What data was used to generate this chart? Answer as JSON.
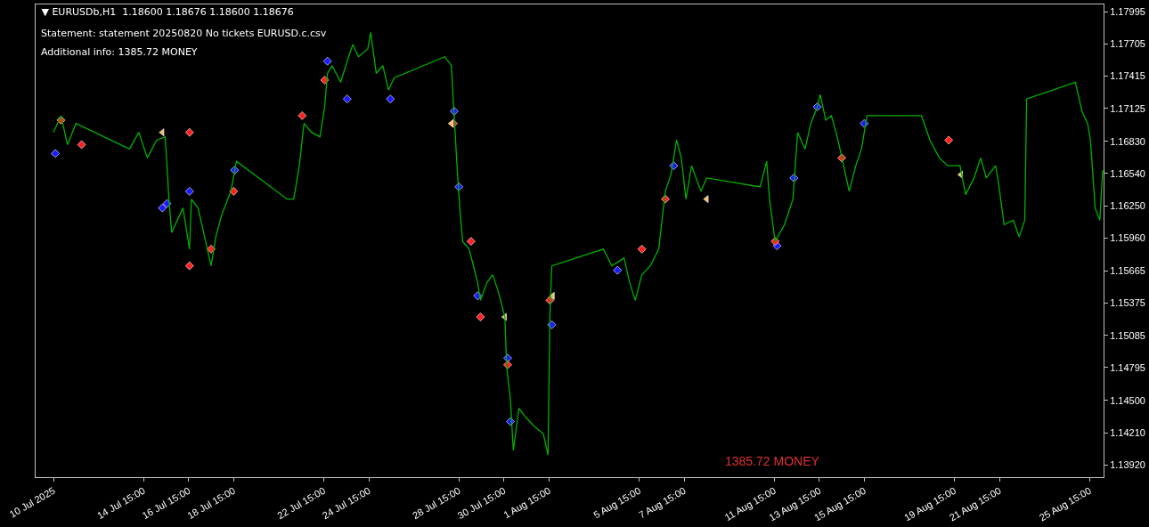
{
  "chart_data": {
    "type": "line",
    "title": "▼ EURUSDb,H1  1.18600 1.18676 1.18600 1.18676",
    "annotations": [
      "Statement: statement 20250820 No tickets EURUSD.c.csv",
      "Additional info: 1385.72 MONEY",
      "1385.72 MONEY"
    ],
    "xlim": [
      "2025-07-09T20:00",
      "2025-08-26T06:00"
    ],
    "xticks": [
      {
        "value": "2025-07-10T15:00",
        "label": "10 Jul 2025"
      },
      {
        "value": "2025-07-14T15:00",
        "label": "14 Jul 15:00"
      },
      {
        "value": "2025-07-16T15:00",
        "label": "16 Jul 15:00"
      },
      {
        "value": "2025-07-18T15:00",
        "label": "18 Jul 15:00"
      },
      {
        "value": "2025-07-22T15:00",
        "label": "22 Jul 15:00"
      },
      {
        "value": "2025-07-24T15:00",
        "label": "24 Jul 15:00"
      },
      {
        "value": "2025-07-28T15:00",
        "label": "28 Jul 15:00"
      },
      {
        "value": "2025-07-30T15:00",
        "label": "30 Jul 15:00"
      },
      {
        "value": "2025-08-01T15:00",
        "label": "1 Aug 15:00"
      },
      {
        "value": "2025-08-05T15:00",
        "label": "5 Aug 15:00"
      },
      {
        "value": "2025-08-07T15:00",
        "label": "7 Aug 15:00"
      },
      {
        "value": "2025-08-11T15:00",
        "label": "11 Aug 15:00"
      },
      {
        "value": "2025-08-13T15:00",
        "label": "13 Aug 15:00"
      },
      {
        "value": "2025-08-15T15:00",
        "label": "15 Aug 15:00"
      },
      {
        "value": "2025-08-19T15:00",
        "label": "19 Aug 15:00"
      },
      {
        "value": "2025-08-21T15:00",
        "label": "21 Aug 15:00"
      },
      {
        "value": "2025-08-25T15:00",
        "label": "25 Aug 15:00"
      }
    ],
    "ylim": [
      1.1381,
      1.1806
    ],
    "yticks": [
      {
        "value": 1.1392,
        "label": "1.13920"
      },
      {
        "value": 1.1421,
        "label": "1.14210"
      },
      {
        "value": 1.145,
        "label": "1.14500"
      },
      {
        "value": 1.14795,
        "label": "1.14795"
      },
      {
        "value": 1.15085,
        "label": "1.15085"
      },
      {
        "value": 1.15375,
        "label": "1.15375"
      },
      {
        "value": 1.15665,
        "label": "1.15665"
      },
      {
        "value": 1.1596,
        "label": "1.15960"
      },
      {
        "value": 1.1625,
        "label": "1.16250"
      },
      {
        "value": 1.1654,
        "label": "1.16540"
      },
      {
        "value": 1.1683,
        "label": "1.16830"
      },
      {
        "value": 1.17125,
        "label": "1.17125"
      },
      {
        "value": 1.17415,
        "label": "1.17415"
      },
      {
        "value": 1.17705,
        "label": "1.17705"
      },
      {
        "value": 1.17995,
        "label": "1.17995"
      }
    ],
    "series": [
      {
        "color": "#00b000",
        "marker": "none",
        "line_style": "solid",
        "x": [
          "2025-07-10T15:00",
          "2025-07-10T23:00",
          "2025-07-11T06:00",
          "2025-07-11T15:00",
          "2025-07-14T00:00",
          "2025-07-14T10:00",
          "2025-07-14T19:00",
          "2025-07-15T05:00",
          "2025-07-15T14:00",
          "2025-07-15T16:00",
          "2025-07-15T18:00",
          "2025-07-15T21:00",
          "2025-07-16T03:00",
          "2025-07-16T09:00",
          "2025-07-16T16:00",
          "2025-07-16T18:00",
          "2025-07-17T01:00",
          "2025-07-17T07:00",
          "2025-07-17T15:00",
          "2025-07-17T20:00",
          "2025-07-18T02:00",
          "2025-07-18T12:00",
          "2025-07-18T18:00",
          "2025-07-21T00:00",
          "2025-07-21T07:00",
          "2025-07-21T13:00",
          "2025-07-21T18:00",
          "2025-07-22T02:00",
          "2025-07-22T11:00",
          "2025-07-22T16:00",
          "2025-07-22T19:00",
          "2025-07-23T00:00",
          "2025-07-23T09:00",
          "2025-07-23T16:00",
          "2025-07-23T22:00",
          "2025-07-24T04:00",
          "2025-07-24T14:00",
          "2025-07-24T17:00",
          "2025-07-24T23:00",
          "2025-07-25T06:00",
          "2025-07-25T12:00",
          "2025-07-25T18:00",
          "2025-07-28T00:00",
          "2025-07-28T07:00",
          "2025-07-28T10:00",
          "2025-07-28T13:00",
          "2025-07-28T16:00",
          "2025-07-28T19:00",
          "2025-07-29T02:00",
          "2025-07-29T11:00",
          "2025-07-29T14:00",
          "2025-07-29T21:00",
          "2025-07-30T03:00",
          "2025-07-30T09:00",
          "2025-07-30T16:00",
          "2025-07-30T18:00",
          "2025-07-30T22:00",
          "2025-07-31T01:00",
          "2025-07-31T07:00",
          "2025-07-31T14:00",
          "2025-07-31T23:00",
          "2025-08-01T09:00",
          "2025-08-01T14:00",
          "2025-08-01T16:00",
          "2025-08-01T18:00",
          "2025-08-04T01:00",
          "2025-08-04T10:00",
          "2025-08-04T23:00",
          "2025-08-05T05:00",
          "2025-08-05T11:00",
          "2025-08-05T18:00",
          "2025-08-06T03:00",
          "2025-08-06T12:00",
          "2025-08-06T19:00",
          "2025-08-07T01:00",
          "2025-08-07T07:00",
          "2025-08-07T12:00",
          "2025-08-07T17:00",
          "2025-08-07T23:00",
          "2025-08-08T09:00",
          "2025-08-08T15:00",
          "2025-08-11T00:00",
          "2025-08-11T07:00",
          "2025-08-11T10:00",
          "2025-08-11T13:00",
          "2025-08-11T16:00",
          "2025-08-12T02:00",
          "2025-08-12T11:00",
          "2025-08-12T16:00",
          "2025-08-13T00:00",
          "2025-08-13T06:00",
          "2025-08-13T13:00",
          "2025-08-13T16:00",
          "2025-08-13T22:00",
          "2025-08-14T04:00",
          "2025-08-14T11:00",
          "2025-08-14T17:00",
          "2025-08-14T23:00",
          "2025-08-15T06:00",
          "2025-08-15T12:00",
          "2025-08-15T18:00",
          "2025-08-18T04:00",
          "2025-08-18T13:00",
          "2025-08-18T23:00",
          "2025-08-19T08:00",
          "2025-08-19T21:00",
          "2025-08-20T03:00",
          "2025-08-20T12:00",
          "2025-08-20T19:00",
          "2025-08-21T01:00",
          "2025-08-21T11:00",
          "2025-08-21T14:00",
          "2025-08-21T20:00",
          "2025-08-22T06:00",
          "2025-08-22T12:00",
          "2025-08-22T18:00",
          "2025-08-22T20:00",
          "2025-08-25T00:00",
          "2025-08-25T07:00",
          "2025-08-25T13:00",
          "2025-08-25T16:00",
          "2025-08-25T21:00",
          "2025-08-26T02:00",
          "2025-08-26T05:00"
        ],
        "values": [
          1.1691,
          1.1706,
          1.168,
          1.1699,
          1.1676,
          1.1691,
          1.1668,
          1.1684,
          1.1687,
          1.1661,
          1.1631,
          1.1601,
          1.1612,
          1.1623,
          1.1586,
          1.1631,
          1.1623,
          1.1601,
          1.1571,
          1.1597,
          1.1616,
          1.1638,
          1.1665,
          1.1631,
          1.1631,
          1.1661,
          1.1699,
          1.1691,
          1.1687,
          1.1714,
          1.1744,
          1.1751,
          1.1736,
          1.1755,
          1.177,
          1.1759,
          1.1766,
          1.1781,
          1.1744,
          1.1751,
          1.1729,
          1.174,
          1.1759,
          1.1751,
          1.1706,
          1.1661,
          1.1623,
          1.1593,
          1.1586,
          1.1556,
          1.154,
          1.1556,
          1.1563,
          1.1548,
          1.1525,
          1.148,
          1.145,
          1.1405,
          1.1443,
          1.1435,
          1.1427,
          1.142,
          1.1401,
          1.1525,
          1.1571,
          1.1586,
          1.1571,
          1.1578,
          1.1556,
          1.154,
          1.1563,
          1.1571,
          1.1586,
          1.1638,
          1.1653,
          1.1684,
          1.1668,
          1.1631,
          1.1661,
          1.1638,
          1.165,
          1.1642,
          1.1665,
          1.1631,
          1.1612,
          1.1593,
          1.1608,
          1.1631,
          1.1691,
          1.1676,
          1.1699,
          1.1714,
          1.1725,
          1.1702,
          1.1706,
          1.1684,
          1.1661,
          1.1638,
          1.1661,
          1.1676,
          1.1706,
          1.1706,
          1.1684,
          1.1668,
          1.1661,
          1.1661,
          1.1635,
          1.165,
          1.1668,
          1.165,
          1.1661,
          1.1646,
          1.1608,
          1.1612,
          1.1597,
          1.1612,
          1.1721,
          1.1736,
          1.171,
          1.1699,
          1.1684,
          1.1623,
          1.1612,
          1.1657
        ]
      },
      {
        "type": "scatter",
        "color": "#1a1aff",
        "marker": "diamond",
        "x": [
          "2025-07-10T17:00",
          "2025-07-15T11:00",
          "2025-07-15T16:00",
          "2025-07-16T16:00",
          "2025-07-18T16:00",
          "2025-07-22T19:00",
          "2025-07-23T16:00",
          "2025-07-25T14:00",
          "2025-07-28T10:00",
          "2025-07-28T15:00",
          "2025-07-29T11:00",
          "2025-07-30T19:00",
          "2025-07-30T22:00",
          "2025-08-01T18:00",
          "2025-08-04T16:00",
          "2025-08-07T04:00",
          "2025-08-11T18:00",
          "2025-08-12T12:00",
          "2025-08-13T13:00",
          "2025-08-15T15:00"
        ],
        "values": [
          1.1672,
          1.1623,
          1.1627,
          1.1638,
          1.1657,
          1.1755,
          1.1721,
          1.1721,
          1.171,
          1.1642,
          1.1544,
          1.1488,
          1.1431,
          1.1518,
          1.1567,
          1.1661,
          1.1589,
          1.165,
          1.1714,
          1.1699
        ]
      },
      {
        "type": "scatter",
        "color": "#ff2020",
        "marker": "diamond",
        "x": [
          "2025-07-10T23:00",
          "2025-07-11T21:00",
          "2025-07-16T16:00",
          "2025-07-16T16:00",
          "2025-07-17T15:00",
          "2025-07-18T15:00",
          "2025-07-21T16:00",
          "2025-07-22T16:00",
          "2025-07-28T09:00",
          "2025-07-29T04:00",
          "2025-07-29T14:00",
          "2025-07-30T19:00",
          "2025-08-01T16:00",
          "2025-08-05T18:00",
          "2025-08-06T19:00",
          "2025-08-11T16:00",
          "2025-08-14T15:00",
          "2025-08-19T09:00"
        ],
        "values": [
          1.1702,
          1.168,
          1.1691,
          1.1571,
          1.1586,
          1.1638,
          1.1706,
          1.1738,
          1.1699,
          1.1593,
          1.1525,
          1.1482,
          1.154,
          1.1586,
          1.1631,
          1.1593,
          1.1668,
          1.1684
        ]
      },
      {
        "type": "scatter",
        "color": "#f0c060",
        "marker": "triangle",
        "x": [
          "2025-07-15T11:00",
          "2025-07-28T07:00",
          "2025-07-30T16:00",
          "2025-08-01T19:00",
          "2025-08-08T15:00",
          "2025-08-19T22:00"
        ],
        "values": [
          1.1691,
          1.1699,
          1.1525,
          1.1544,
          1.1631,
          1.1653
        ]
      }
    ]
  }
}
